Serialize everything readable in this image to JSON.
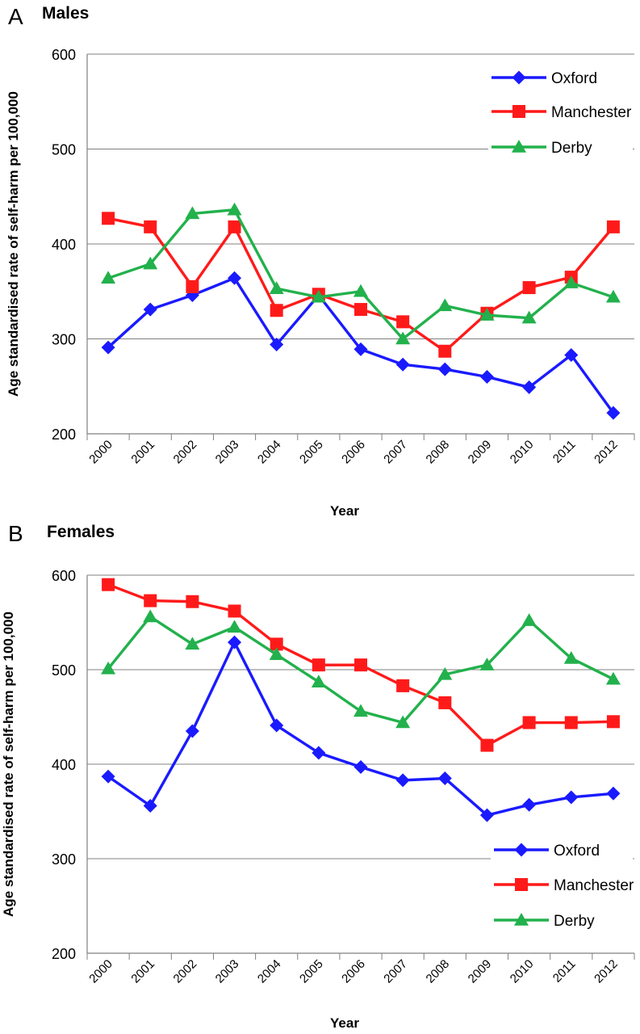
{
  "colors": {
    "oxford": "#1a1aff",
    "manchester": "#ff1a1a",
    "derby": "#22b14c",
    "grid": "#808080",
    "axis": "#808080",
    "text": "#000000"
  },
  "chart_data": [
    {
      "type": "line",
      "panel_letter": "A",
      "title": "Males",
      "xlabel": "Year",
      "ylabel": "Age standardised rate of self-harm per 100,000",
      "ylim": [
        200,
        600
      ],
      "yticks": [
        "600",
        "500",
        "400",
        "300",
        "200"
      ],
      "grid": true,
      "legend_position": "top-right",
      "categories": [
        "2000",
        "2001",
        "2002",
        "2003",
        "2004",
        "2005",
        "2006",
        "2007",
        "2008",
        "2009",
        "2010",
        "2011",
        "2012"
      ],
      "series": [
        {
          "name": "Oxford",
          "marker": "diamond",
          "color_key": "oxford",
          "values": [
            291,
            331,
            346,
            364,
            294,
            346,
            289,
            273,
            268,
            260,
            249,
            283,
            222
          ]
        },
        {
          "name": "Manchester",
          "marker": "square",
          "color_key": "manchester",
          "values": [
            427,
            418,
            355,
            418,
            330,
            347,
            331,
            318,
            287,
            327,
            354,
            365,
            418
          ]
        },
        {
          "name": "Derby",
          "marker": "triangle",
          "color_key": "derby",
          "values": [
            364,
            379,
            432,
            436,
            353,
            344,
            350,
            300,
            335,
            325,
            322,
            359,
            344
          ]
        }
      ]
    },
    {
      "type": "line",
      "panel_letter": "B",
      "title": "Females",
      "xlabel": "Year",
      "ylabel": "Age standardised  rate of self-harm  per 100,000",
      "ylim": [
        200,
        600
      ],
      "yticks": [
        "600",
        "500",
        "400",
        "300",
        "200"
      ],
      "grid": true,
      "legend_position": "bottom-right",
      "categories": [
        "2000",
        "2001",
        "2002",
        "2003",
        "2004",
        "2005",
        "2006",
        "2007",
        "2008",
        "2009",
        "2010",
        "2011",
        "2012"
      ],
      "series": [
        {
          "name": "Oxford",
          "marker": "diamond",
          "color_key": "oxford",
          "values": [
            387,
            356,
            435,
            529,
            441,
            412,
            397,
            383,
            385,
            346,
            357,
            365,
            369
          ]
        },
        {
          "name": "Manchester",
          "marker": "square",
          "color_key": "manchester",
          "values": [
            590,
            573,
            572,
            562,
            527,
            505,
            505,
            483,
            465,
            420,
            444,
            444,
            445
          ]
        },
        {
          "name": "Derby",
          "marker": "triangle",
          "color_key": "derby",
          "values": [
            501,
            556,
            527,
            545,
            516,
            487,
            456,
            444,
            495,
            505,
            552,
            512,
            490
          ]
        }
      ]
    }
  ]
}
